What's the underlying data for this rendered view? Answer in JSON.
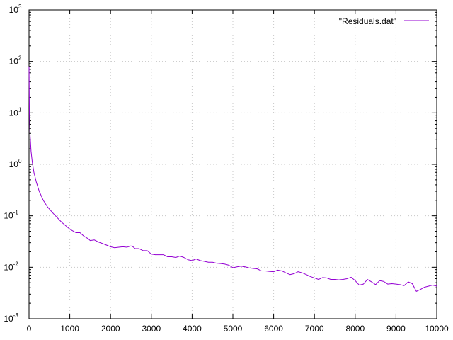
{
  "chart_data": {
    "type": "line",
    "title": "",
    "xlabel": "",
    "ylabel": "",
    "xlim": [
      0,
      10000
    ],
    "ylim": [
      0.001,
      1000
    ],
    "yscale": "log",
    "grid": true,
    "legend_position": "top-right",
    "x_ticks": [
      "0",
      "1000",
      "2000",
      "3000",
      "4000",
      "5000",
      "6000",
      "7000",
      "8000",
      "9000",
      "10000"
    ],
    "y_ticks": [
      {
        "base": "10",
        "exp": "-3"
      },
      {
        "base": "10",
        "exp": "-2"
      },
      {
        "base": "10",
        "exp": "-1"
      },
      {
        "base": "10",
        "exp": "0"
      },
      {
        "base": "10",
        "exp": "1"
      },
      {
        "base": "10",
        "exp": "2"
      },
      {
        "base": "10",
        "exp": "3"
      }
    ],
    "series": [
      {
        "name": "\"Residuals.dat\"",
        "color": "#9400d3",
        "x": [
          0,
          10,
          25,
          50,
          80,
          120,
          180,
          250,
          350,
          450,
          600,
          800,
          1000,
          1150,
          1250,
          1350,
          1450,
          1500,
          1600,
          1700,
          1800,
          1900,
          2000,
          2100,
          2200,
          2300,
          2400,
          2500,
          2550,
          2600,
          2700,
          2800,
          2900,
          3000,
          3100,
          3200,
          3300,
          3400,
          3500,
          3600,
          3700,
          3800,
          3900,
          4000,
          4100,
          4200,
          4300,
          4400,
          4500,
          4600,
          4700,
          4800,
          4900,
          5000,
          5100,
          5200,
          5300,
          5400,
          5500,
          5600,
          5700,
          5800,
          5900,
          6000,
          6100,
          6200,
          6300,
          6400,
          6500,
          6600,
          6700,
          6800,
          6900,
          7000,
          7100,
          7200,
          7300,
          7400,
          7500,
          7600,
          7700,
          7800,
          7900,
          8000,
          8100,
          8200,
          8300,
          8400,
          8500,
          8600,
          8700,
          8800,
          8900,
          9000,
          9100,
          9200,
          9300,
          9400,
          9500,
          9600,
          9700,
          9800,
          9900,
          10000
        ],
        "y": [
          80,
          10,
          4,
          1.8,
          1.1,
          0.7,
          0.45,
          0.3,
          0.2,
          0.15,
          0.11,
          0.075,
          0.055,
          0.047,
          0.047,
          0.04,
          0.036,
          0.033,
          0.034,
          0.031,
          0.029,
          0.027,
          0.025,
          0.024,
          0.0245,
          0.025,
          0.0245,
          0.026,
          0.025,
          0.023,
          0.023,
          0.021,
          0.021,
          0.018,
          0.0175,
          0.0175,
          0.0175,
          0.016,
          0.016,
          0.0155,
          0.0165,
          0.0155,
          0.014,
          0.0135,
          0.0145,
          0.0135,
          0.013,
          0.0125,
          0.0125,
          0.012,
          0.0118,
          0.0115,
          0.011,
          0.0098,
          0.0102,
          0.0105,
          0.0102,
          0.0097,
          0.0095,
          0.0093,
          0.0085,
          0.0085,
          0.0083,
          0.0082,
          0.0088,
          0.0085,
          0.0078,
          0.0072,
          0.0075,
          0.0082,
          0.0078,
          0.0072,
          0.0066,
          0.0062,
          0.0058,
          0.0063,
          0.0062,
          0.0058,
          0.0058,
          0.0057,
          0.0058,
          0.006,
          0.0064,
          0.0055,
          0.0045,
          0.0047,
          0.0058,
          0.0052,
          0.0046,
          0.0055,
          0.0053,
          0.0047,
          0.0048,
          0.0047,
          0.0046,
          0.0044,
          0.0052,
          0.0048,
          0.0034,
          0.0037,
          0.0041,
          0.0043,
          0.0045,
          0.0043
        ]
      }
    ]
  }
}
